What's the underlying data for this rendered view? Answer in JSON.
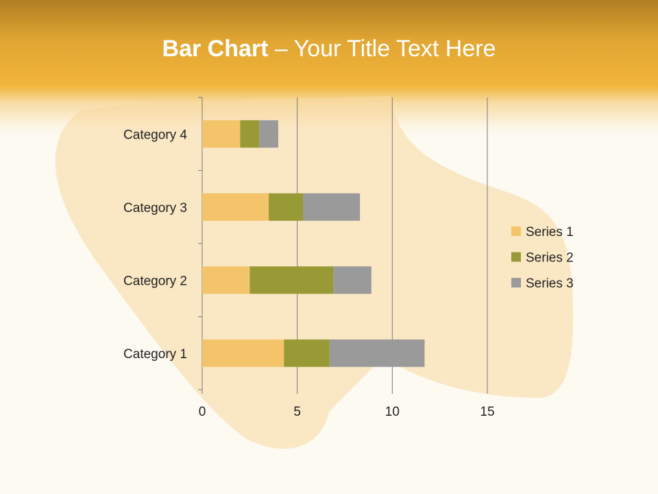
{
  "slide": {
    "title_bold": "Bar Chart",
    "title_rest": " – Your Title Text Here"
  },
  "chart_data": {
    "type": "bar",
    "orientation": "horizontal",
    "stacked": true,
    "categories": [
      "Category 1",
      "Category 2",
      "Category 3",
      "Category 4"
    ],
    "series": [
      {
        "name": "Series 1",
        "values": [
          4.3,
          2.5,
          3.5,
          2.0
        ],
        "color": "#f4c46a"
      },
      {
        "name": "Series 2",
        "values": [
          2.4,
          4.4,
          1.8,
          1.0
        ],
        "color": "#989a35"
      },
      {
        "name": "Series 3",
        "values": [
          5.0,
          2.0,
          3.0,
          1.0
        ],
        "color": "#9a9a9a"
      }
    ],
    "xlim": [
      0,
      15
    ],
    "xticks": [
      "0",
      "5",
      "10",
      "15"
    ],
    "grid": true,
    "legend": "right"
  }
}
